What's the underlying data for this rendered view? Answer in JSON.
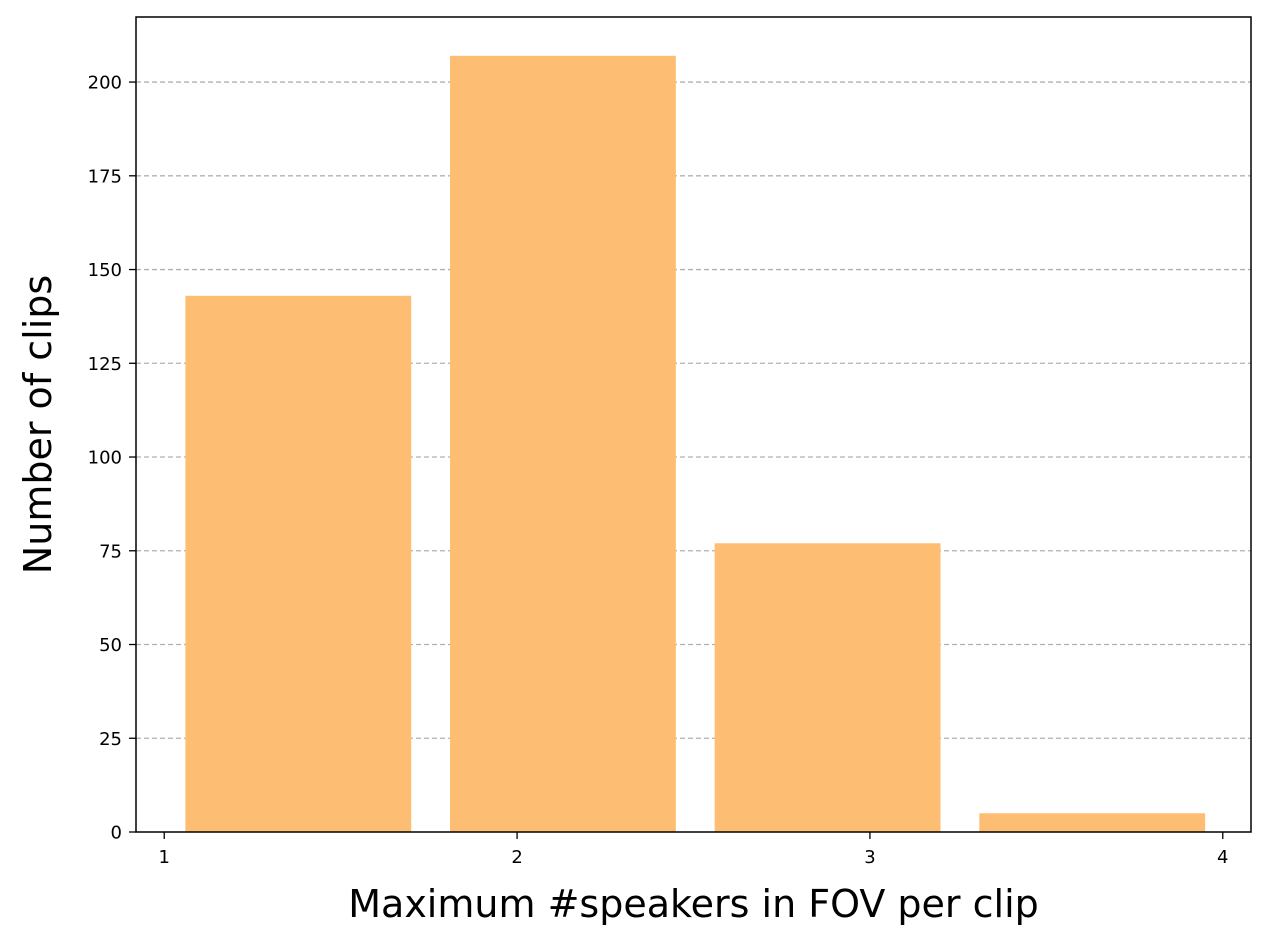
{
  "chart_data": {
    "type": "bar",
    "xlabel": "Maximum #speakers in FOV per clip",
    "ylabel": "Number of clips",
    "xlim": [
      0.92,
      4.08
    ],
    "ylim": [
      0,
      217.35
    ],
    "x_ticks": [
      1,
      2,
      3,
      4
    ],
    "x_tick_labels": [
      "1",
      "2",
      "3",
      "4"
    ],
    "y_ticks": [
      0,
      25,
      50,
      75,
      100,
      125,
      150,
      175,
      200
    ],
    "y_tick_labels": [
      "0",
      "25",
      "50",
      "75",
      "100",
      "125",
      "150",
      "175",
      "200"
    ],
    "bars": [
      {
        "x_start": 1.06,
        "x_end": 1.7,
        "value": 143
      },
      {
        "x_start": 1.81,
        "x_end": 2.45,
        "value": 207
      },
      {
        "x_start": 2.56,
        "x_end": 3.2,
        "value": 77
      },
      {
        "x_start": 3.31,
        "x_end": 3.95,
        "value": 5
      }
    ],
    "bar_color": "#fdbe73",
    "grid": {
      "axis": "y",
      "style": "dashed",
      "color": "#b0b0b0"
    },
    "legend": "none"
  }
}
